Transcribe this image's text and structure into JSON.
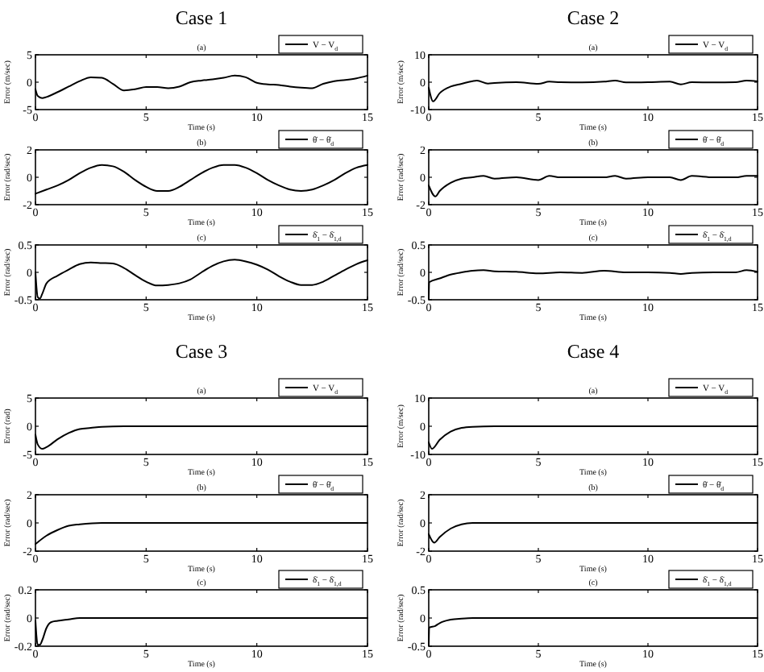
{
  "chart_data": [
    {
      "type": "line",
      "title": "Case 1",
      "subtitle": "(a)",
      "xlabel": "Time (s)",
      "ylabel": "Error (m/sec)",
      "xlim": [
        0,
        15
      ],
      "xticks": [
        0,
        5,
        10,
        15
      ],
      "ylim": [
        -5,
        5
      ],
      "yticks": [
        -5,
        0,
        5
      ],
      "legend": "top right",
      "x": [
        0,
        0.1,
        0.3,
        0.5,
        1,
        1.5,
        2,
        2.5,
        3,
        3.5,
        4,
        4.5,
        5,
        5.5,
        6,
        6.5,
        7,
        7.5,
        8,
        8.5,
        9,
        9.5,
        10,
        10.5,
        11,
        11.5,
        12,
        12.5,
        13,
        13.5,
        14,
        14.5,
        15
      ],
      "series": [
        {
          "name": "V − V$_{d}$",
          "color": "#000000",
          "values": [
            -1.3,
            -2.5,
            -2.9,
            -2.7,
            -1.8,
            -0.8,
            0.2,
            0.9,
            0.8,
            -0.3,
            -1.5,
            -1.3,
            -0.9,
            -0.9,
            -1.1,
            -0.8,
            0,
            0.3,
            0.5,
            0.8,
            1.2,
            0.9,
            -0.1,
            -0.4,
            -0.5,
            -0.8,
            -1,
            -1.1,
            -0.3,
            0.2,
            0.4,
            0.7,
            1.2
          ]
        }
      ]
    },
    {
      "type": "line",
      "title": "(b)",
      "xlabel": "Time (s)",
      "ylabel": "Error (rad/sec)",
      "xlim": [
        0,
        15
      ],
      "xticks": [
        0,
        5,
        10,
        15
      ],
      "ylim": [
        -2,
        2
      ],
      "yticks": [
        -2,
        0,
        2
      ],
      "legend": "top right",
      "x": [
        0,
        0.5,
        1,
        1.5,
        2,
        2.5,
        3,
        3.5,
        4,
        4.5,
        5,
        5.5,
        6,
        6.5,
        7,
        7.5,
        8,
        8.5,
        9,
        9.5,
        10,
        10.5,
        11,
        11.5,
        12,
        12.5,
        13,
        13.5,
        14,
        14.5,
        15
      ],
      "series": [
        {
          "name": "θ̇ − θ̇$_{d}$",
          "color": "#000000",
          "values": [
            -1.2,
            -0.9,
            -0.6,
            -0.2,
            0.3,
            0.7,
            0.9,
            0.8,
            0.4,
            -0.2,
            -0.7,
            -1,
            -1,
            -0.7,
            -0.2,
            0.3,
            0.7,
            0.9,
            0.9,
            0.7,
            0.3,
            -0.2,
            -0.6,
            -0.9,
            -1,
            -0.9,
            -0.6,
            -0.2,
            0.3,
            0.7,
            0.9
          ]
        }
      ]
    },
    {
      "type": "line",
      "title": "(c)",
      "xlabel": "Time (s)",
      "ylabel": "Error (rad/sec)",
      "xlim": [
        0,
        15
      ],
      "xticks": [
        0,
        5,
        10,
        15
      ],
      "ylim": [
        -0.5,
        0.5
      ],
      "yticks": [
        -0.5,
        0,
        0.5
      ],
      "legend": "top right",
      "x": [
        0,
        0.1,
        0.2,
        0.3,
        0.5,
        1,
        1.5,
        2,
        2.5,
        3,
        3.5,
        4,
        4.5,
        5,
        5.5,
        6,
        6.5,
        7,
        7.5,
        8,
        8.5,
        9,
        9.5,
        10,
        10.5,
        11,
        11.5,
        12,
        12.5,
        13,
        13.5,
        14,
        14.5,
        15
      ],
      "series": [
        {
          "name": "δ̇$_{1}$ − δ̇$_{1,d}$",
          "color": "#000000",
          "values": [
            0,
            -0.45,
            -0.48,
            -0.4,
            -0.2,
            -0.06,
            0.05,
            0.15,
            0.18,
            0.17,
            0.16,
            0.08,
            -0.05,
            -0.17,
            -0.24,
            -0.23,
            -0.2,
            -0.13,
            0,
            0.12,
            0.2,
            0.23,
            0.2,
            0.14,
            0.05,
            -0.07,
            -0.17,
            -0.23,
            -0.23,
            -0.17,
            -0.06,
            0.05,
            0.15,
            0.22
          ]
        }
      ]
    },
    {
      "type": "line",
      "title": "Case 2",
      "subtitle": "(a)",
      "xlabel": "Time (s)",
      "ylabel": "Error (m/sec)",
      "xlim": [
        0,
        15
      ],
      "xticks": [
        0,
        5,
        10,
        15
      ],
      "ylim": [
        -10,
        10
      ],
      "yticks": [
        -10,
        0,
        10
      ],
      "legend": "top right",
      "x": [
        0,
        0.2,
        0.5,
        1,
        1.5,
        2,
        2.2,
        2.7,
        3,
        4,
        5,
        5.5,
        6,
        7,
        8,
        8.5,
        9,
        10,
        11,
        11.5,
        12,
        13,
        14,
        14.5,
        15
      ],
      "series": [
        {
          "name": "V − V$_{d}$",
          "color": "#000000",
          "values": [
            -2,
            -7,
            -4,
            -1.6,
            -0.6,
            0.4,
            0.6,
            -0.5,
            -0.3,
            0,
            -0.6,
            0.2,
            0,
            -0.1,
            0.2,
            0.6,
            -0.1,
            0,
            0.2,
            -0.8,
            0,
            -0.1,
            0,
            0.6,
            0.3
          ]
        }
      ]
    },
    {
      "type": "line",
      "title": "(b)",
      "xlabel": "Time (s)",
      "ylabel": "Error (rad/sec)",
      "xlim": [
        0,
        15
      ],
      "xticks": [
        0,
        5,
        10,
        15
      ],
      "ylim": [
        -2,
        2
      ],
      "yticks": [
        -2,
        0,
        2
      ],
      "legend": "top right",
      "x": [
        0,
        0.3,
        0.5,
        1,
        1.5,
        2,
        2.5,
        3,
        4,
        5,
        5.5,
        6,
        7,
        8,
        8.5,
        9,
        10,
        11,
        11.5,
        12,
        13,
        14,
        14.5,
        15
      ],
      "series": [
        {
          "name": "θ̇ − θ̇$_{d}$",
          "color": "#000000",
          "values": [
            -0.6,
            -1.4,
            -1,
            -0.4,
            -0.1,
            0,
            0.1,
            -0.1,
            0,
            -0.2,
            0.1,
            0,
            0,
            0,
            0.1,
            -0.1,
            0,
            0,
            -0.2,
            0.1,
            0,
            0,
            0.1,
            0.1
          ]
        }
      ]
    },
    {
      "type": "line",
      "title": "(c)",
      "xlabel": "Time (s)",
      "ylabel": "Error (rad/sec)",
      "xlim": [
        0,
        15
      ],
      "xticks": [
        0,
        5,
        10,
        15
      ],
      "ylim": [
        -0.5,
        0.5
      ],
      "yticks": [
        -0.5,
        0,
        0.5
      ],
      "legend": "top right",
      "x": [
        0,
        0.02,
        0.5,
        1,
        1.5,
        2,
        2.5,
        3,
        4,
        5,
        6,
        7,
        8,
        9,
        10,
        11,
        11.5,
        12,
        13,
        14,
        14.5,
        15
      ],
      "series": [
        {
          "name": "δ̇$_{1}$ − δ̇$_{1,d}$",
          "color": "#000000",
          "values": [
            -0.48,
            -0.18,
            -0.11,
            -0.04,
            0,
            0.03,
            0.04,
            0.02,
            0.01,
            -0.02,
            0,
            -0.01,
            0.03,
            0,
            0,
            -0.01,
            -0.03,
            -0.01,
            0,
            0,
            0.04,
            0.01
          ]
        }
      ]
    },
    {
      "type": "line",
      "title": "Case 3",
      "subtitle": "(a)",
      "xlabel": "Time (s)",
      "ylabel": "Error (rad)",
      "xlim": [
        0,
        15
      ],
      "xticks": [
        0,
        5,
        10,
        15
      ],
      "ylim": [
        -5,
        5
      ],
      "yticks": [
        -5,
        0,
        5
      ],
      "legend": "top right",
      "x": [
        0,
        0.1,
        0.3,
        0.5,
        1,
        1.5,
        2,
        2.5,
        3,
        4,
        15
      ],
      "series": [
        {
          "name": "V − V$_{d}$",
          "color": "#000000",
          "values": [
            -1.5,
            -3.2,
            -4,
            -3.7,
            -2.3,
            -1.2,
            -0.5,
            -0.3,
            -0.1,
            0,
            0
          ]
        }
      ]
    },
    {
      "type": "line",
      "title": "(b)",
      "xlabel": "Time (s)",
      "ylabel": "Error (rad/sec)",
      "xlim": [
        0,
        15
      ],
      "xticks": [
        0,
        5,
        10,
        15
      ],
      "ylim": [
        -2,
        2
      ],
      "yticks": [
        -2,
        0,
        2
      ],
      "legend": "top right",
      "x": [
        0,
        0.5,
        1,
        1.5,
        2,
        3,
        4,
        15
      ],
      "series": [
        {
          "name": "θ̇ − θ̇$_{d}$",
          "color": "#000000",
          "values": [
            -1.5,
            -0.9,
            -0.5,
            -0.2,
            -0.1,
            0,
            0,
            0
          ]
        }
      ]
    },
    {
      "type": "line",
      "title": "(c)",
      "xlabel": "Time (s)",
      "ylabel": "Error (rad/sec)",
      "xlim": [
        0,
        15
      ],
      "xticks": [
        0,
        5,
        10,
        15
      ],
      "ylim": [
        -0.2,
        0.2
      ],
      "yticks": [
        -0.2,
        0,
        0.2
      ],
      "legend": "top right",
      "x": [
        0,
        0.1,
        0.2,
        0.3,
        0.5,
        0.7,
        1,
        1.5,
        2,
        3,
        15
      ],
      "series": [
        {
          "name": "δ̇$_{1}$ − δ̇$_{1,d}$",
          "color": "#000000",
          "values": [
            -0.02,
            -0.19,
            -0.19,
            -0.16,
            -0.07,
            -0.03,
            -0.02,
            -0.01,
            0,
            0,
            0
          ]
        }
      ]
    },
    {
      "type": "line",
      "title": "Case 4",
      "subtitle": "(a)",
      "xlabel": "Time (s)",
      "ylabel": "Error (m/sec)",
      "xlim": [
        0,
        15
      ],
      "xticks": [
        0,
        5,
        10,
        15
      ],
      "ylim": [
        -10,
        10
      ],
      "yticks": [
        -10,
        0,
        10
      ],
      "legend": "top right",
      "x": [
        0,
        0.15,
        0.5,
        1,
        1.5,
        2,
        3,
        15
      ],
      "series": [
        {
          "name": "V − V$_{d}$",
          "color": "#000000",
          "values": [
            -5.7,
            -8,
            -4.8,
            -1.9,
            -0.6,
            -0.2,
            0,
            0
          ]
        }
      ]
    },
    {
      "type": "line",
      "title": "(b)",
      "xlabel": "Time (s)",
      "ylabel": "Error (rad/sec)",
      "xlim": [
        0,
        15
      ],
      "xticks": [
        0,
        5,
        10,
        15
      ],
      "ylim": [
        -2,
        2
      ],
      "yticks": [
        -2,
        0,
        2
      ],
      "legend": "top right",
      "x": [
        0,
        0.25,
        0.5,
        1,
        1.5,
        2,
        3,
        15
      ],
      "series": [
        {
          "name": "θ̇ − θ̇$_{d}$",
          "color": "#000000",
          "values": [
            -0.8,
            -1.4,
            -1,
            -0.4,
            -0.1,
            0,
            0,
            0
          ]
        }
      ]
    },
    {
      "type": "line",
      "title": "(c)",
      "xlabel": "Time (s)",
      "ylabel": "Error (rad/sec)",
      "xlim": [
        0,
        15
      ],
      "xticks": [
        0,
        5,
        10,
        15
      ],
      "ylim": [
        -0.5,
        0.5
      ],
      "yticks": [
        -0.5,
        0,
        0.5
      ],
      "legend": "top right",
      "x": [
        0,
        0.02,
        0.3,
        0.5,
        1,
        1.5,
        2,
        15
      ],
      "series": [
        {
          "name": "δ̇$_{1}$ − δ̇$_{1,d}$",
          "color": "#000000",
          "values": [
            -0.48,
            -0.17,
            -0.14,
            -0.09,
            -0.03,
            -0.01,
            0,
            0
          ]
        }
      ]
    }
  ]
}
